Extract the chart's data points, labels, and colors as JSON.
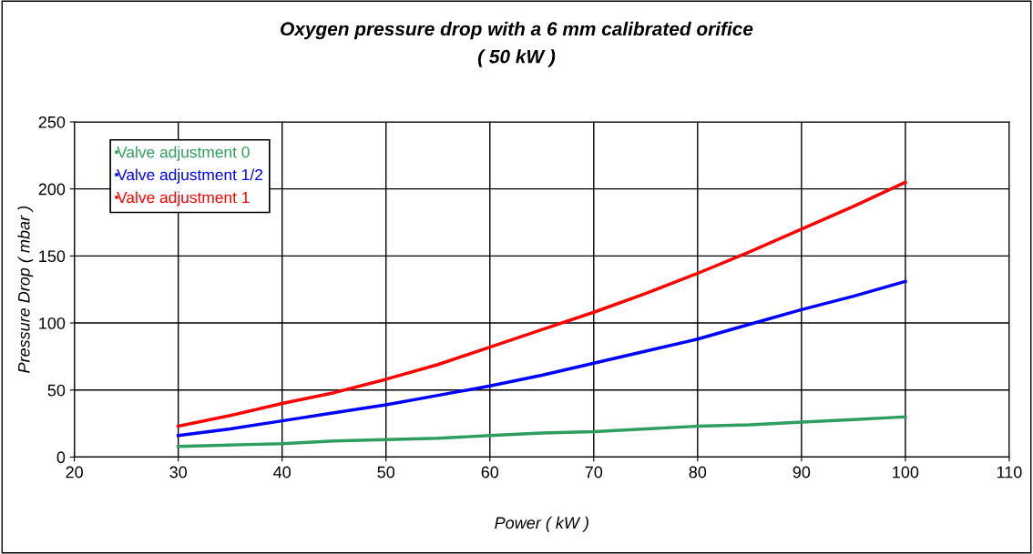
{
  "chart_data": {
    "type": "line",
    "title": "Oxygen pressure drop with a 6 mm calibrated orifice",
    "subtitle": "( 50 kW )",
    "xlabel": "Power ( kW )",
    "ylabel": "Pressure Drop ( mbar )",
    "x": [
      30,
      35,
      40,
      45,
      50,
      55,
      60,
      65,
      70,
      75,
      80,
      85,
      90,
      95,
      100
    ],
    "series": [
      {
        "name": "Valve adjustment 0",
        "color": "#2e9e5e",
        "values": [
          8,
          9,
          10,
          12,
          13,
          14,
          16,
          18,
          19,
          21,
          23,
          24,
          26,
          28,
          30
        ]
      },
      {
        "name": "Valve adjustment 1/2",
        "color": "#0000ff",
        "values": [
          16,
          21,
          27,
          33,
          39,
          46,
          53,
          61,
          70,
          79,
          88,
          99,
          110,
          120,
          131
        ]
      },
      {
        "name": "Valve adjustment 1",
        "color": "#ff0000",
        "values": [
          23,
          31,
          40,
          48,
          58,
          69,
          82,
          95,
          108,
          122,
          137,
          153,
          170,
          187,
          205
        ]
      }
    ],
    "xlim": [
      20,
      110
    ],
    "xticks": [
      20,
      30,
      40,
      50,
      60,
      70,
      80,
      90,
      100,
      110
    ],
    "ylim": [
      0,
      250
    ],
    "yticks": [
      0,
      50,
      100,
      150,
      200,
      250
    ],
    "grid": true,
    "legend": "top left",
    "marker": "none",
    "line_style": "solid"
  }
}
